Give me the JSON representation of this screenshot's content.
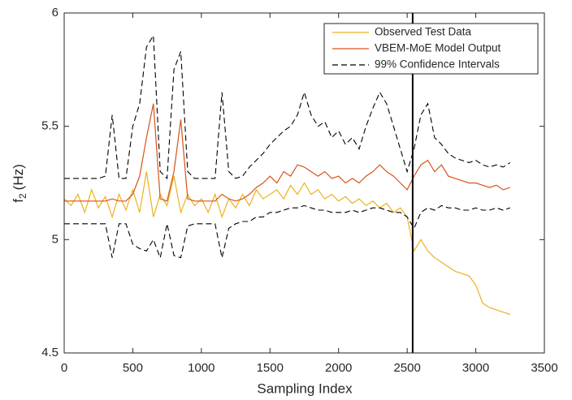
{
  "chart_data": {
    "type": "line",
    "xlabel": "Sampling Index",
    "ylabel": {
      "base": "f",
      "sub": "2",
      "unit": "(Hz)"
    },
    "xlim": [
      0,
      3500
    ],
    "xticks": [
      0,
      500,
      1000,
      1500,
      2000,
      2500,
      3000,
      3500
    ],
    "ylim": [
      4.5,
      6
    ],
    "yticks": [
      4.5,
      5,
      5.5,
      6
    ],
    "vline": 2540,
    "legend": "upper-right",
    "x": [
      0,
      50,
      100,
      150,
      200,
      250,
      300,
      350,
      400,
      450,
      500,
      550,
      600,
      650,
      700,
      750,
      800,
      850,
      900,
      950,
      1000,
      1050,
      1100,
      1150,
      1200,
      1250,
      1300,
      1350,
      1400,
      1450,
      1500,
      1550,
      1600,
      1650,
      1700,
      1750,
      1800,
      1850,
      1900,
      1950,
      2000,
      2050,
      2100,
      2150,
      2200,
      2250,
      2300,
      2350,
      2400,
      2450,
      2500,
      2550,
      2600,
      2650,
      2700,
      2750,
      2800,
      2850,
      2900,
      2950,
      3000,
      3050,
      3100,
      3150,
      3200,
      3250
    ],
    "series": [
      {
        "name": "Observed Test Data",
        "color": "#EDB120",
        "style": "solid",
        "values": [
          5.18,
          5.15,
          5.2,
          5.12,
          5.22,
          5.14,
          5.19,
          5.1,
          5.2,
          5.13,
          5.22,
          5.12,
          5.3,
          5.1,
          5.2,
          5.15,
          5.28,
          5.12,
          5.2,
          5.15,
          5.18,
          5.12,
          5.2,
          5.1,
          5.18,
          5.14,
          5.2,
          5.15,
          5.22,
          5.18,
          5.2,
          5.22,
          5.18,
          5.24,
          5.2,
          5.25,
          5.2,
          5.22,
          5.18,
          5.2,
          5.17,
          5.19,
          5.16,
          5.18,
          5.15,
          5.17,
          5.14,
          5.16,
          5.12,
          5.14,
          5.1,
          4.95,
          5.0,
          4.95,
          4.92,
          4.9,
          4.88,
          4.86,
          4.85,
          4.84,
          4.8,
          4.72,
          4.7,
          4.69,
          4.68,
          4.67
        ]
      },
      {
        "name": "VBEM-MoE Model Output",
        "color": "#D95319",
        "style": "solid",
        "values": [
          5.17,
          5.17,
          5.17,
          5.17,
          5.17,
          5.17,
          5.17,
          5.18,
          5.17,
          5.17,
          5.2,
          5.28,
          5.45,
          5.6,
          5.18,
          5.17,
          5.3,
          5.53,
          5.18,
          5.17,
          5.17,
          5.17,
          5.17,
          5.2,
          5.18,
          5.17,
          5.18,
          5.2,
          5.23,
          5.25,
          5.28,
          5.25,
          5.3,
          5.28,
          5.33,
          5.32,
          5.3,
          5.28,
          5.3,
          5.27,
          5.28,
          5.25,
          5.27,
          5.25,
          5.28,
          5.3,
          5.33,
          5.3,
          5.28,
          5.25,
          5.22,
          5.28,
          5.33,
          5.35,
          5.3,
          5.33,
          5.28,
          5.27,
          5.26,
          5.25,
          5.25,
          5.24,
          5.23,
          5.24,
          5.22,
          5.23
        ]
      },
      {
        "name": "99% Confidence Intervals",
        "color": "#000000",
        "style": "dashed",
        "values": [
          5.27,
          5.27,
          5.27,
          5.27,
          5.27,
          5.27,
          5.28,
          5.55,
          5.27,
          5.27,
          5.5,
          5.6,
          5.85,
          5.9,
          5.3,
          5.27,
          5.75,
          5.83,
          5.3,
          5.27,
          5.27,
          5.27,
          5.27,
          5.65,
          5.3,
          5.27,
          5.28,
          5.32,
          5.35,
          5.38,
          5.42,
          5.45,
          5.48,
          5.5,
          5.55,
          5.65,
          5.55,
          5.5,
          5.52,
          5.45,
          5.48,
          5.42,
          5.45,
          5.4,
          5.5,
          5.58,
          5.65,
          5.6,
          5.5,
          5.4,
          5.3,
          5.4,
          5.55,
          5.6,
          5.45,
          5.42,
          5.38,
          5.36,
          5.35,
          5.34,
          5.35,
          5.33,
          5.32,
          5.33,
          5.32,
          5.34
        ]
      },
      {
        "color": "#000000",
        "style": "dashed",
        "values": [
          5.07,
          5.07,
          5.07,
          5.07,
          5.07,
          5.07,
          5.07,
          4.92,
          5.07,
          5.07,
          4.98,
          4.96,
          4.95,
          5.0,
          4.92,
          5.07,
          4.93,
          4.92,
          5.06,
          5.07,
          5.07,
          5.07,
          5.07,
          4.92,
          5.05,
          5.07,
          5.08,
          5.08,
          5.1,
          5.1,
          5.12,
          5.12,
          5.13,
          5.14,
          5.14,
          5.15,
          5.14,
          5.13,
          5.13,
          5.12,
          5.12,
          5.12,
          5.13,
          5.12,
          5.13,
          5.14,
          5.14,
          5.13,
          5.12,
          5.12,
          5.1,
          5.05,
          5.12,
          5.14,
          5.13,
          5.15,
          5.14,
          5.14,
          5.13,
          5.13,
          5.14,
          5.13,
          5.13,
          5.14,
          5.13,
          5.14
        ]
      }
    ]
  }
}
